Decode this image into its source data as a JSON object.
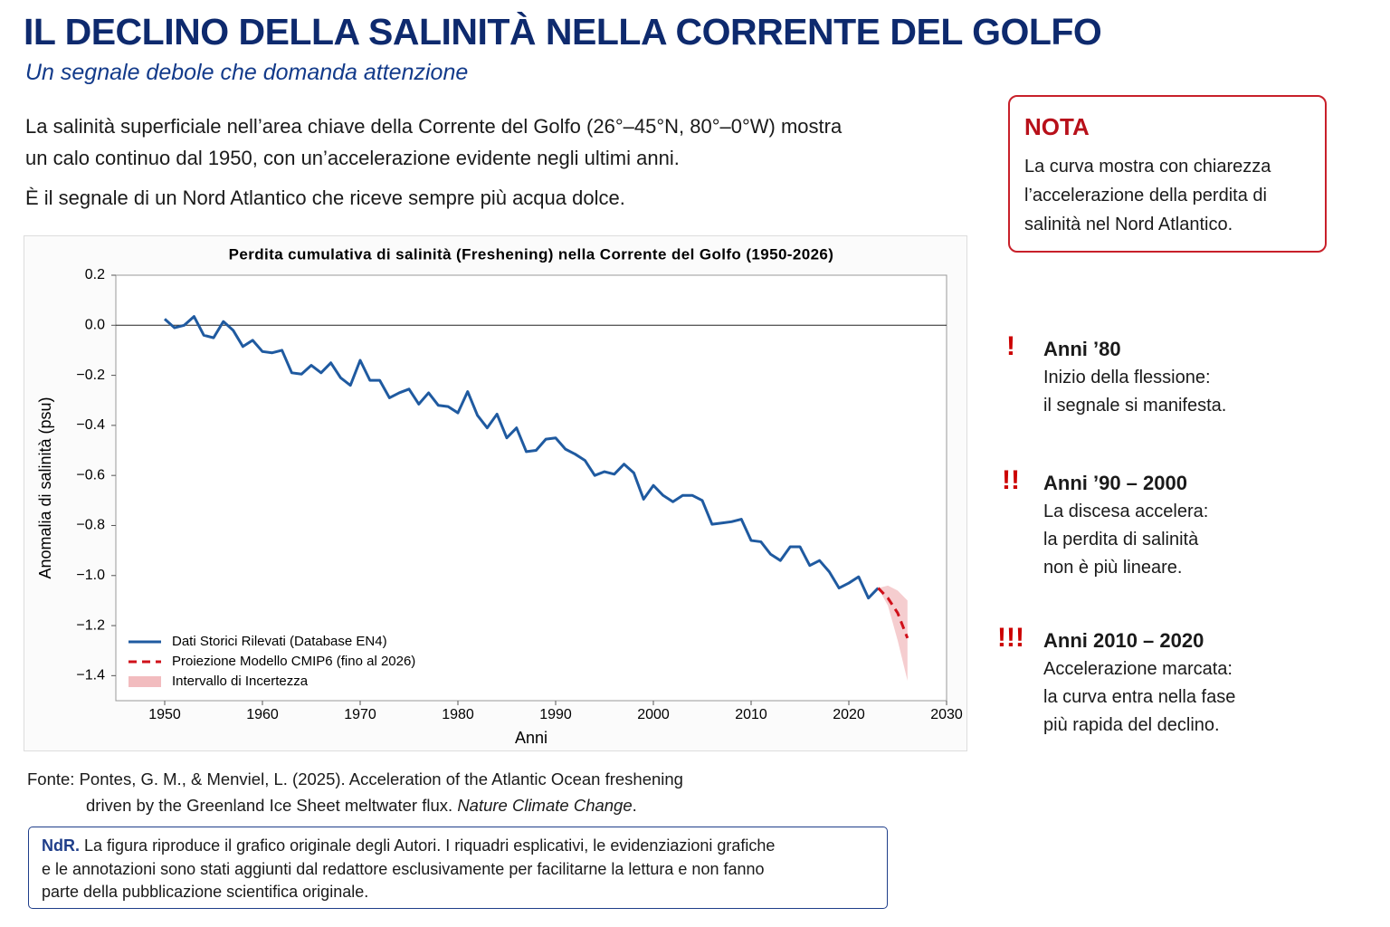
{
  "header": {
    "title": "IL DECLINO DELLA SALINITÀ NELLA CORRENTE DEL GOLFO",
    "subtitle": "Un segnale debole che domanda attenzione"
  },
  "intro": {
    "lines": [
      "La salinità superficiale nell’area chiave della Corrente del Golfo (26°–45°N, 80°–0°W) mostra",
      "un calo continuo dal 1950, con un’accelerazione evidente negli ultimi anni.",
      "È il segnale di un Nord Atlantico che riceve sempre più acqua dolce."
    ]
  },
  "note": {
    "title": "NOTA",
    "lines": [
      "La curva mostra con chiarezza",
      "l’accelerazione della perdita di",
      "salinità nel Nord Atlantico."
    ]
  },
  "annotations": [
    {
      "marker": "!",
      "title": "Anni ’80",
      "lines": [
        "Inizio della flessione:",
        "il segnale si manifesta."
      ]
    },
    {
      "marker": "!!",
      "title": "Anni ’90 – 2000",
      "lines": [
        "La discesa accelera:",
        "la perdita di salinità",
        "non è più lineare."
      ]
    },
    {
      "marker": "!!!",
      "title": "Anni 2010 – 2020",
      "lines": [
        "Accelerazione marcata:",
        "la curva entra nella fase",
        "più rapida del declino."
      ]
    }
  ],
  "source": {
    "label": "Fonte:",
    "line1": "Pontes, G. M., & Menviel, L. (2025). Acceleration of the Atlantic Ocean freshening",
    "line2": "driven by the Greenland Ice Sheet meltwater flux.",
    "journal": "Nature Climate Change",
    "end": "."
  },
  "editor_note": {
    "label": "NdR.",
    "lines": [
      "La figura riproduce il grafico originale degli Autori. I riquadri esplicativi, le evidenziazioni grafiche",
      "e le annotazioni sono stati aggiunti dal redattore esclusivamente per facilitarne la lettura e non fanno",
      "parte della pubblicazione scientifica originale."
    ]
  },
  "chart_data": {
    "type": "line",
    "title": "Perdita cumulativa di salinità (Freshening) nella Corrente del Golfo (1950-2026)",
    "xlabel": "Anni",
    "ylabel": "Anomalia di salinità (psu)",
    "xlim": [
      1945,
      2030
    ],
    "ylim": [
      -1.5,
      0.2
    ],
    "xticks": [
      1950,
      1960,
      1970,
      1980,
      1990,
      2000,
      2010,
      2020,
      2030
    ],
    "yticks": [
      {
        "value": 0.2,
        "label": "0.2"
      },
      {
        "value": 0,
        "label": "0.0"
      },
      {
        "value": -0.2,
        "label": "−0.2"
      },
      {
        "value": -0.4,
        "label": "−0.4"
      },
      {
        "value": -0.6,
        "label": "−0.6"
      },
      {
        "value": -0.8,
        "label": "−0.8"
      },
      {
        "value": -1,
        "label": "−1.0"
      },
      {
        "value": -1.2,
        "label": "−1.2"
      },
      {
        "value": -1.4,
        "label": "−1.4"
      }
    ],
    "zero_line": true,
    "legend": "lower left",
    "series": [
      {
        "name": "Dati Storici Rilevati (Database EN4)",
        "color": "#1f5aa0",
        "style": "solid",
        "x": [
          1950,
          1951,
          1952,
          1953,
          1954,
          1955,
          1956,
          1957,
          1958,
          1959,
          1960,
          1961,
          1962,
          1963,
          1964,
          1965,
          1966,
          1967,
          1968,
          1969,
          1970,
          1971,
          1972,
          1973,
          1974,
          1975,
          1976,
          1977,
          1978,
          1979,
          1980,
          1981,
          1982,
          1983,
          1984,
          1985,
          1986,
          1987,
          1988,
          1989,
          1990,
          1991,
          1992,
          1993,
          1994,
          1995,
          1996,
          1997,
          1998,
          1999,
          2000,
          2001,
          2002,
          2003,
          2004,
          2005,
          2006,
          2007,
          2008,
          2009,
          2010,
          2011,
          2012,
          2013,
          2014,
          2015,
          2016,
          2017,
          2018,
          2019,
          2020,
          2021,
          2022,
          2023
        ],
        "values": [
          0.025,
          -0.01,
          0,
          0.035,
          -0.04,
          -0.05,
          0.015,
          -0.02,
          -0.085,
          -0.06,
          -0.105,
          -0.11,
          -0.1,
          -0.19,
          -0.195,
          -0.16,
          -0.19,
          -0.15,
          -0.21,
          -0.24,
          -0.14,
          -0.22,
          -0.22,
          -0.29,
          -0.27,
          -0.255,
          -0.315,
          -0.27,
          -0.32,
          -0.325,
          -0.35,
          -0.265,
          -0.36,
          -0.41,
          -0.355,
          -0.45,
          -0.41,
          -0.505,
          -0.5,
          -0.455,
          -0.45,
          -0.495,
          -0.515,
          -0.54,
          -0.6,
          -0.585,
          -0.595,
          -0.555,
          -0.59,
          -0.695,
          -0.64,
          -0.68,
          -0.705,
          -0.68,
          -0.68,
          -0.7,
          -0.795,
          -0.79,
          -0.785,
          -0.775,
          -0.86,
          -0.865,
          -0.915,
          -0.94,
          -0.885,
          -0.885,
          -0.96,
          -0.94,
          -0.985,
          -1.05,
          -1.03,
          -1.005,
          -1.09,
          -1.05
        ]
      },
      {
        "name": "Proiezione Modello CMIP6 (fino al 2026)",
        "color": "#d0101a",
        "style": "dashed",
        "x": [
          2023,
          2024,
          2025,
          2026
        ],
        "values": [
          -1.05,
          -1.09,
          -1.15,
          -1.25
        ]
      }
    ],
    "band": {
      "name": "Intervallo di Incertezza",
      "color": "#f2bcbf",
      "x": [
        2023,
        2024,
        2025,
        2026
      ],
      "lower": [
        -1.05,
        -1.12,
        -1.26,
        -1.42
      ],
      "upper": [
        -1.05,
        -1.04,
        -1.06,
        -1.1
      ]
    }
  }
}
